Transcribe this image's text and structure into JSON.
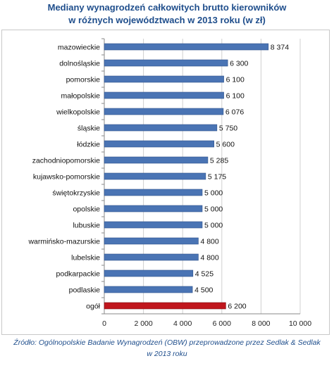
{
  "title_line1": "Mediany wynagrodzeń całkowitych brutto kierowników",
  "title_line2": "w różnych województwach w 2013 roku (w zł)",
  "source_line1": "Źródło: Ogólnopolskie Badanie Wynagrodzeń (OBW) przeprowadzone przez Sedlak & Sedlak",
  "source_line2": "w 2013 roku",
  "colors": {
    "bar": "#4a74b4",
    "bar_highlight": "#c0161d",
    "text": "#1f4e8c"
  },
  "chart_data": {
    "type": "bar",
    "orientation": "horizontal",
    "categories": [
      "mazowieckie",
      "dolnośląskie",
      "pomorskie",
      "małopolskie",
      "wielkopolskie",
      "śląskie",
      "łódzkie",
      "zachodniopomorskie",
      "kujawsko-pomorskie",
      "świętokrzyskie",
      "opolskie",
      "lubuskie",
      "warmińsko-mazurskie",
      "lubelskie",
      "podkarpackie",
      "podlaskie",
      "ogół"
    ],
    "values": [
      8374,
      6300,
      6100,
      6100,
      6076,
      5750,
      5600,
      5285,
      5175,
      5000,
      5000,
      5000,
      4800,
      4800,
      4525,
      4500,
      6200
    ],
    "value_labels": [
      "8 374",
      "6 300",
      "6 100",
      "6 100",
      "6 076",
      "5 750",
      "5 600",
      "5 285",
      "5 175",
      "5 000",
      "5 000",
      "5 000",
      "4 800",
      "4 800",
      "4 525",
      "4 500",
      "6 200"
    ],
    "highlight": [
      "ogół"
    ],
    "xlim": [
      0,
      10000
    ],
    "xticks": [
      0,
      2000,
      4000,
      6000,
      8000,
      10000
    ],
    "xtick_labels": [
      "0",
      "2 000",
      "4 000",
      "6 000",
      "8 000",
      "10 000"
    ],
    "grid": true
  }
}
